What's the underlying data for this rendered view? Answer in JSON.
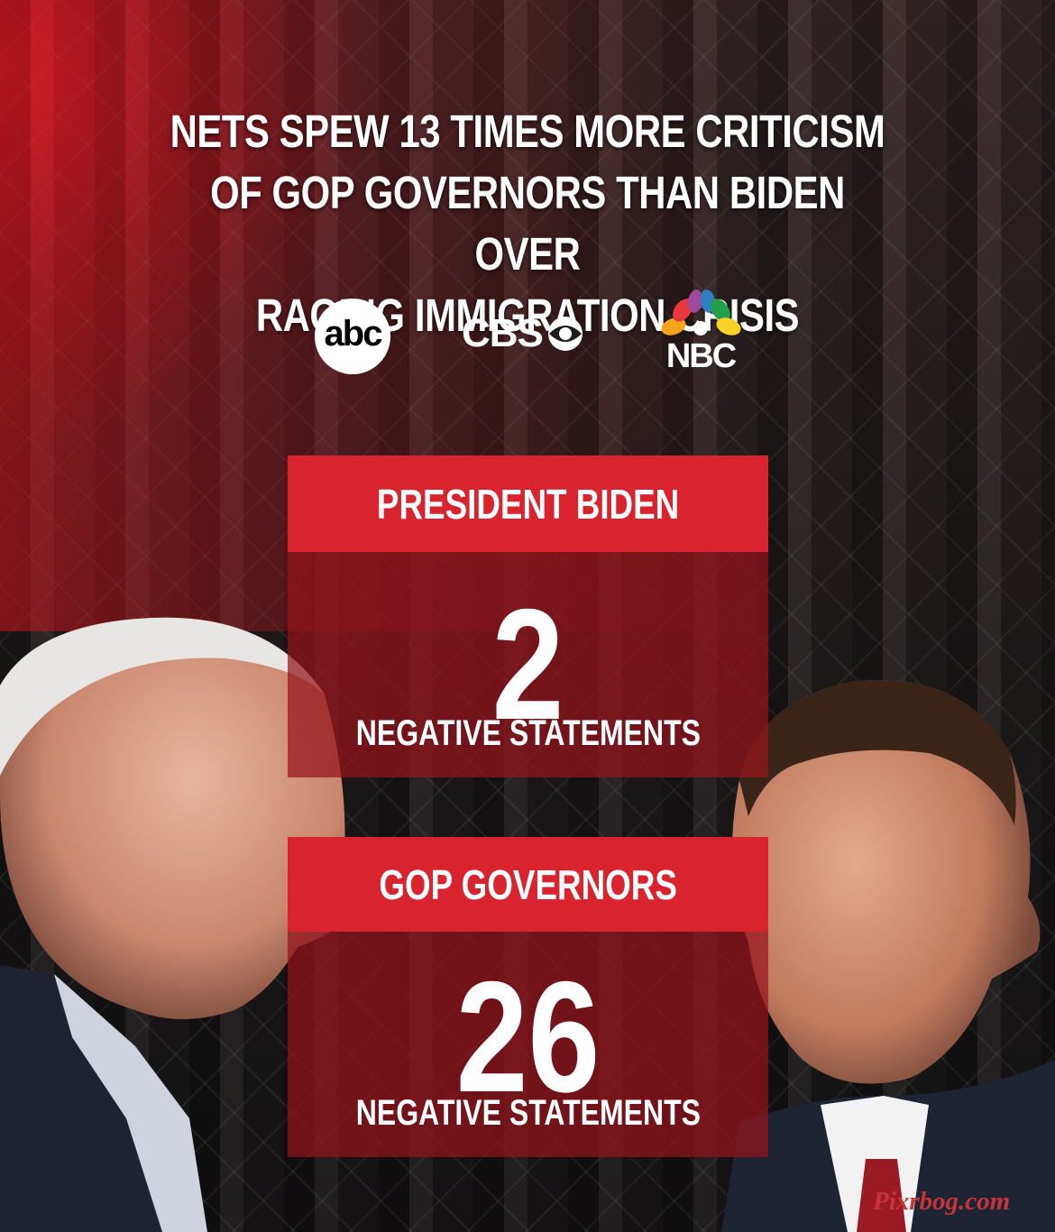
{
  "headline": {
    "line1": "NETS SPEW 13 TIMES MORE CRITICISM",
    "line2": "OF GOP GOVERNORS THAN BIDEN OVER",
    "line3": "RAGING IMMIGRATION CRISIS"
  },
  "networks": {
    "abc": "abc",
    "cbs": "CBS",
    "nbc": "NBC"
  },
  "biden": {
    "header": "PRESIDENT BIDEN",
    "count": "2",
    "label": "NEGATIVE STATEMENTS"
  },
  "governors": {
    "header": "GOP GOVERNORS",
    "count": "26",
    "label": "NEGATIVE STATEMENTS"
  },
  "watermark": "Pixrbog.com",
  "colors": {
    "accent_red": "#d9232f",
    "panel_red": "#96141c",
    "text": "#ffffff"
  }
}
